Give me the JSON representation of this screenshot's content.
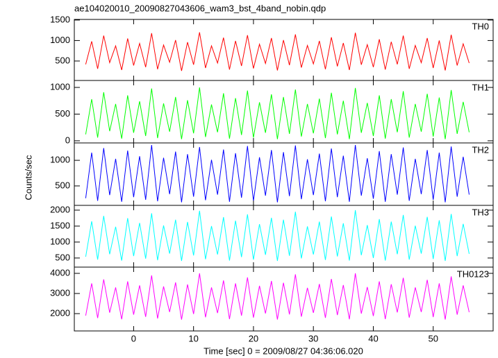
{
  "chart_data": [
    {
      "type": "line",
      "title": "ae104020010_20090827043606_wam3_bst_4band_nobin.qdp",
      "ylabel": "Counts/sec",
      "label": "TH0",
      "color": "#ff0000",
      "x": [
        -8,
        -7,
        -6,
        -5,
        -4,
        -3,
        -2,
        -1,
        0,
        1,
        2,
        3,
        4,
        5,
        6,
        7,
        8,
        9,
        10,
        11,
        12,
        13,
        14,
        15,
        16,
        17,
        18,
        19,
        20,
        21,
        22,
        23,
        24,
        25,
        26,
        27,
        28,
        29,
        30,
        31,
        32,
        33,
        34,
        35,
        36,
        37,
        38,
        39,
        40,
        41,
        42,
        43,
        44,
        45,
        46,
        47,
        48,
        49,
        50,
        51,
        52,
        53,
        54,
        55,
        56
      ],
      "values": [
        420,
        980,
        310,
        1120,
        460,
        870,
        280,
        1050,
        390,
        930,
        350,
        1180,
        300,
        890,
        470,
        1010,
        260,
        960,
        410,
        1200,
        330,
        870,
        450,
        1070,
        290,
        990,
        380,
        1130,
        320,
        910,
        440,
        1060,
        270,
        1010,
        400,
        1150,
        340,
        880,
        430,
        990,
        300,
        1080,
        370,
        940,
        280,
        1190,
        410,
        900,
        350,
        1030,
        290,
        970,
        420,
        1120,
        310,
        880,
        460,
        1060,
        330,
        1000,
        270,
        1140,
        390,
        920,
        450
      ],
      "xlim": [
        -9.9,
        60
      ],
      "xticks": [
        0,
        10,
        20,
        30,
        40,
        50
      ],
      "ylim": [
        25,
        1515
      ],
      "yticks": [
        500,
        1000,
        1500
      ]
    },
    {
      "type": "line",
      "label": "TH1",
      "color": "#00ff00",
      "x": [
        -8,
        -7,
        -6,
        -5,
        -4,
        -3,
        -2,
        -1,
        0,
        1,
        2,
        3,
        4,
        5,
        6,
        7,
        8,
        9,
        10,
        11,
        12,
        13,
        14,
        15,
        16,
        17,
        18,
        19,
        20,
        21,
        22,
        23,
        24,
        25,
        26,
        27,
        28,
        29,
        30,
        31,
        32,
        33,
        34,
        35,
        36,
        37,
        38,
        39,
        40,
        41,
        42,
        43,
        44,
        45,
        46,
        47,
        48,
        49,
        50,
        51,
        52,
        53,
        54,
        55,
        56
      ],
      "values": [
        120,
        780,
        60,
        910,
        180,
        690,
        40,
        850,
        150,
        740,
        90,
        980,
        50,
        700,
        170,
        820,
        30,
        760,
        140,
        1000,
        70,
        680,
        160,
        890,
        40,
        800,
        110,
        940,
        60,
        720,
        150,
        870,
        30,
        820,
        130,
        960,
        80,
        690,
        140,
        790,
        50,
        900,
        120,
        750,
        30,
        990,
        150,
        710,
        90,
        850,
        40,
        780,
        160,
        930,
        60,
        690,
        170,
        880,
        80,
        810,
        30,
        950,
        130,
        730,
        160
      ],
      "xlim": [
        -9.9,
        60
      ],
      "xticks": [
        0,
        10,
        20,
        30,
        40,
        50
      ],
      "ylim": [
        -40,
        1130
      ],
      "yticks": [
        0,
        500,
        1000
      ]
    },
    {
      "type": "line",
      "label": "TH2",
      "color": "#0000ff",
      "x": [
        -8,
        -7,
        -6,
        -5,
        -4,
        -3,
        -2,
        -1,
        0,
        1,
        2,
        3,
        4,
        5,
        6,
        7,
        8,
        9,
        10,
        11,
        12,
        13,
        14,
        15,
        16,
        17,
        18,
        19,
        20,
        21,
        22,
        23,
        24,
        25,
        26,
        27,
        28,
        29,
        30,
        31,
        32,
        33,
        34,
        35,
        36,
        37,
        38,
        39,
        40,
        41,
        42,
        43,
        44,
        45,
        46,
        47,
        48,
        49,
        50,
        51,
        52,
        53,
        54,
        55,
        56
      ],
      "values": [
        260,
        1150,
        210,
        1240,
        320,
        1030,
        190,
        1190,
        280,
        1080,
        230,
        1300,
        200,
        1050,
        340,
        1170,
        180,
        1120,
        290,
        1260,
        220,
        1010,
        330,
        1210,
        190,
        1140,
        270,
        1280,
        210,
        1060,
        310,
        1200,
        180,
        1160,
        300,
        1290,
        240,
        1020,
        320,
        1130,
        200,
        1230,
        280,
        1090,
        190,
        1300,
        310,
        1040,
        250,
        1180,
        190,
        1120,
        330,
        1250,
        210,
        1030,
        340,
        1200,
        230,
        1150,
        180,
        1270,
        290,
        1070,
        330
      ],
      "xlim": [
        -9.9,
        60
      ],
      "xticks": [
        0,
        10,
        20,
        30,
        40,
        50
      ],
      "ylim": [
        120,
        1340
      ],
      "yticks": [
        500,
        1000
      ]
    },
    {
      "type": "line",
      "label": "TH3",
      "color": "#00ffff",
      "x": [
        -8,
        -7,
        -6,
        -5,
        -4,
        -3,
        -2,
        -1,
        0,
        1,
        2,
        3,
        4,
        5,
        6,
        7,
        8,
        9,
        10,
        11,
        12,
        13,
        14,
        15,
        16,
        17,
        18,
        19,
        20,
        21,
        22,
        23,
        24,
        25,
        26,
        27,
        28,
        29,
        30,
        31,
        32,
        33,
        34,
        35,
        36,
        37,
        38,
        39,
        40,
        41,
        42,
        43,
        44,
        45,
        46,
        47,
        48,
        49,
        50,
        51,
        52,
        53,
        54,
        55,
        56
      ],
      "values": [
        540,
        1650,
        450,
        1820,
        620,
        1480,
        420,
        1750,
        560,
        1600,
        480,
        1900,
        430,
        1520,
        640,
        1700,
        410,
        1630,
        580,
        1980,
        460,
        1500,
        610,
        1780,
        420,
        1670,
        530,
        1870,
        450,
        1560,
        600,
        1760,
        410,
        1700,
        570,
        1950,
        490,
        1490,
        610,
        1640,
        440,
        1800,
        550,
        1590,
        420,
        2000,
        590,
        1530,
        500,
        1720,
        420,
        1640,
        620,
        1850,
        450,
        1510,
        640,
        1790,
        470,
        1680,
        410,
        1880,
        560,
        1570,
        630
      ],
      "xlim": [
        -9.9,
        60
      ],
      "xticks": [
        0,
        10,
        20,
        30,
        40,
        50
      ],
      "ylim": [
        215,
        2150
      ],
      "yticks": [
        500,
        1000,
        1500,
        2000
      ]
    },
    {
      "type": "line",
      "label": "TH0123",
      "color": "#ff00ff",
      "xlabel": "Time [sec] 0 = 2009/08/27 04:36:06.020",
      "x": [
        -8,
        -7,
        -6,
        -5,
        -4,
        -3,
        -2,
        -1,
        0,
        1,
        2,
        3,
        4,
        5,
        6,
        7,
        8,
        9,
        10,
        11,
        12,
        13,
        14,
        15,
        16,
        17,
        18,
        19,
        20,
        21,
        22,
        23,
        24,
        25,
        26,
        27,
        28,
        29,
        30,
        31,
        32,
        33,
        34,
        35,
        36,
        37,
        38,
        39,
        40,
        41,
        42,
        43,
        44,
        45,
        46,
        47,
        48,
        49,
        50,
        51,
        52,
        53,
        54,
        55,
        56
      ],
      "values": [
        1900,
        3500,
        1780,
        3700,
        2050,
        3300,
        1720,
        3600,
        1950,
        3400,
        1840,
        3900,
        1760,
        3350,
        2080,
        3550,
        1700,
        3450,
        1980,
        4000,
        1820,
        3300,
        2030,
        3650,
        1730,
        3500,
        1900,
        3800,
        1800,
        3380,
        2010,
        3620,
        1710,
        3530,
        1960,
        3950,
        1850,
        3280,
        2040,
        3470,
        1790,
        3720,
        1930,
        3420,
        1720,
        4000,
        2000,
        3320,
        1880,
        3600,
        1730,
        3460,
        2060,
        3780,
        1800,
        3300,
        2080,
        3680,
        1830,
        3500,
        1710,
        3850,
        1950,
        3400,
        2070
      ],
      "xlim": [
        -9.9,
        60
      ],
      "xticks": [
        0,
        10,
        20,
        30,
        40,
        50
      ],
      "ylim": [
        1140,
        4310
      ],
      "yticks": [
        2000,
        3000,
        4000
      ]
    }
  ]
}
